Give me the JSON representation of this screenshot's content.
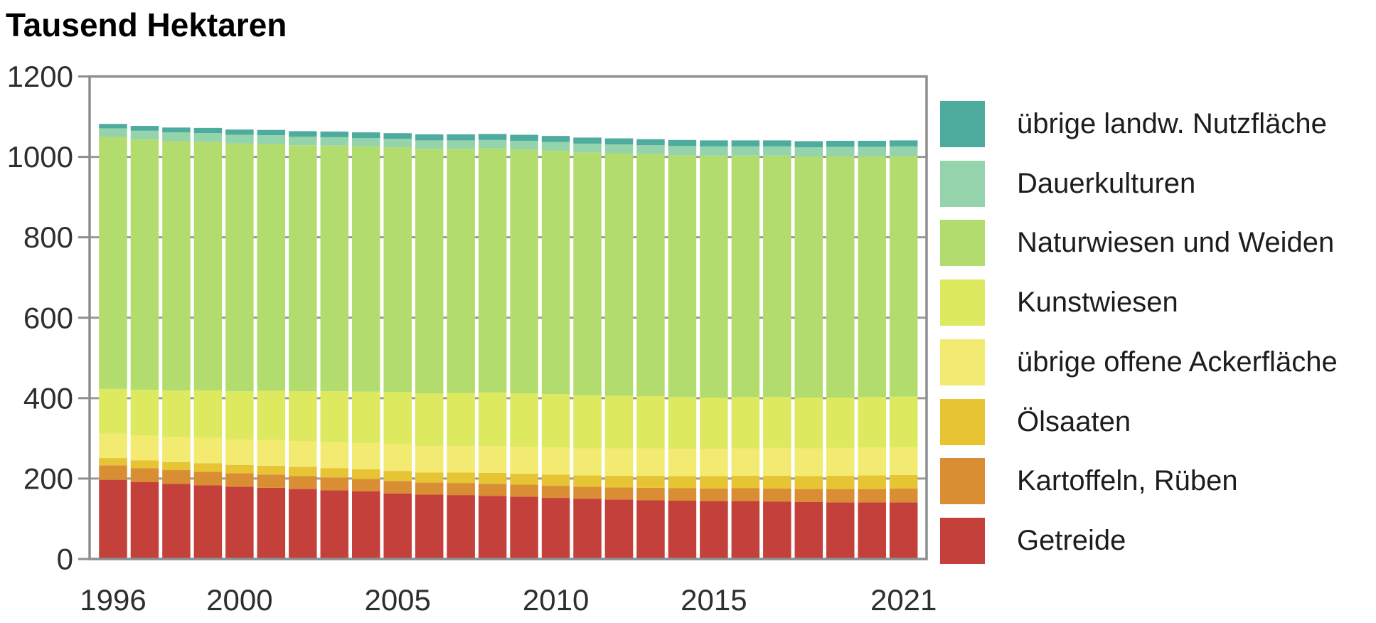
{
  "title": "Tausend Hektaren",
  "colors": {
    "background": "#ffffff",
    "frame": "#8e8e8e",
    "gridline": "#999999",
    "axis_text": "#2e2e2e",
    "title_text": "#000000",
    "legend_text": "#1d1d1d"
  },
  "chart_data": {
    "type": "bar",
    "stacked": true,
    "title": "Tausend Hektaren",
    "xlabel": "",
    "ylabel": "Tausend Hektaren",
    "ylim": [
      0,
      1200
    ],
    "y_ticks": [
      0,
      200,
      400,
      600,
      800,
      1000,
      1200
    ],
    "grid": "horizontal",
    "legend_position": "right",
    "legend_order": "top-to-bottom is reverse of stacking order",
    "x": [
      1996,
      1997,
      1998,
      1999,
      2000,
      2001,
      2002,
      2003,
      2004,
      2005,
      2006,
      2007,
      2008,
      2009,
      2010,
      2011,
      2012,
      2013,
      2014,
      2015,
      2016,
      2017,
      2018,
      2019,
      2020,
      2021
    ],
    "x_tick_labels": [
      "1996",
      "2000",
      "2005",
      "2010",
      "2015",
      "2021"
    ],
    "x_tick_indices": [
      0,
      4,
      9,
      14,
      19,
      25
    ],
    "series": [
      {
        "name": "Getreide",
        "slug": "getreide",
        "color": "#c4403a",
        "values": [
          197,
          191,
          187,
          183,
          180,
          177,
          174,
          171,
          168,
          163,
          160,
          159,
          157,
          155,
          152,
          150,
          148,
          146,
          145,
          144,
          144,
          143,
          142,
          141,
          141,
          141
        ]
      },
      {
        "name": "Kartoffeln, Rüben",
        "slug": "kartoffeln-rueben",
        "color": "#d98e33",
        "values": [
          36,
          35,
          34,
          34,
          33,
          33,
          32,
          32,
          31,
          31,
          30,
          30,
          30,
          30,
          30,
          30,
          30,
          31,
          31,
          31,
          32,
          32,
          32,
          33,
          33,
          34
        ]
      },
      {
        "name": "Ölsaaten",
        "slug": "oelsaaten",
        "color": "#e6c434",
        "values": [
          18,
          19,
          20,
          21,
          21,
          22,
          23,
          23,
          24,
          25,
          25,
          26,
          27,
          27,
          28,
          28,
          29,
          30,
          30,
          31,
          31,
          32,
          32,
          33,
          34,
          34
        ]
      },
      {
        "name": "übrige offene Ackerfläche",
        "slug": "uebrige-offene-ackerflaeche",
        "color": "#f3ea72",
        "values": [
          61,
          62,
          62,
          63,
          63,
          64,
          64,
          65,
          65,
          66,
          66,
          66,
          67,
          67,
          67,
          67,
          68,
          68,
          68,
          68,
          68,
          69,
          69,
          69,
          69,
          69
        ]
      },
      {
        "name": "Kunstwiesen",
        "slug": "kunstwiesen",
        "color": "#dde95f",
        "values": [
          111,
          114,
          116,
          118,
          120,
          122,
          124,
          126,
          128,
          130,
          131,
          132,
          133,
          133,
          133,
          132,
          131,
          130,
          129,
          128,
          128,
          127,
          127,
          126,
          126,
          126
        ]
      },
      {
        "name": "Naturwiesen und Weiden",
        "slug": "naturwiesen-und-weiden",
        "color": "#b2dd6e",
        "values": [
          626,
          622,
          620,
          618,
          616,
          614,
          612,
          611,
          610,
          609,
          608,
          607,
          607,
          606,
          605,
          604,
          603,
          602,
          601,
          601,
          600,
          600,
          599,
          599,
          598,
          598
        ]
      },
      {
        "name": "Dauerkulturen",
        "slug": "dauerkulturen",
        "color": "#94d3ac",
        "values": [
          22,
          22,
          22,
          22,
          22,
          22,
          21,
          21,
          21,
          21,
          21,
          21,
          21,
          22,
          22,
          22,
          22,
          22,
          23,
          23,
          23,
          23,
          23,
          24,
          24,
          24
        ]
      },
      {
        "name": "übrige landw. Nutzfläche",
        "slug": "uebrige-landw-nutzflaeche",
        "color": "#4dac9e",
        "values": [
          11,
          12,
          12,
          13,
          13,
          13,
          14,
          14,
          14,
          14,
          15,
          15,
          15,
          15,
          15,
          15,
          15,
          15,
          15,
          15,
          15,
          15,
          15,
          15,
          15,
          15
        ]
      }
    ]
  }
}
